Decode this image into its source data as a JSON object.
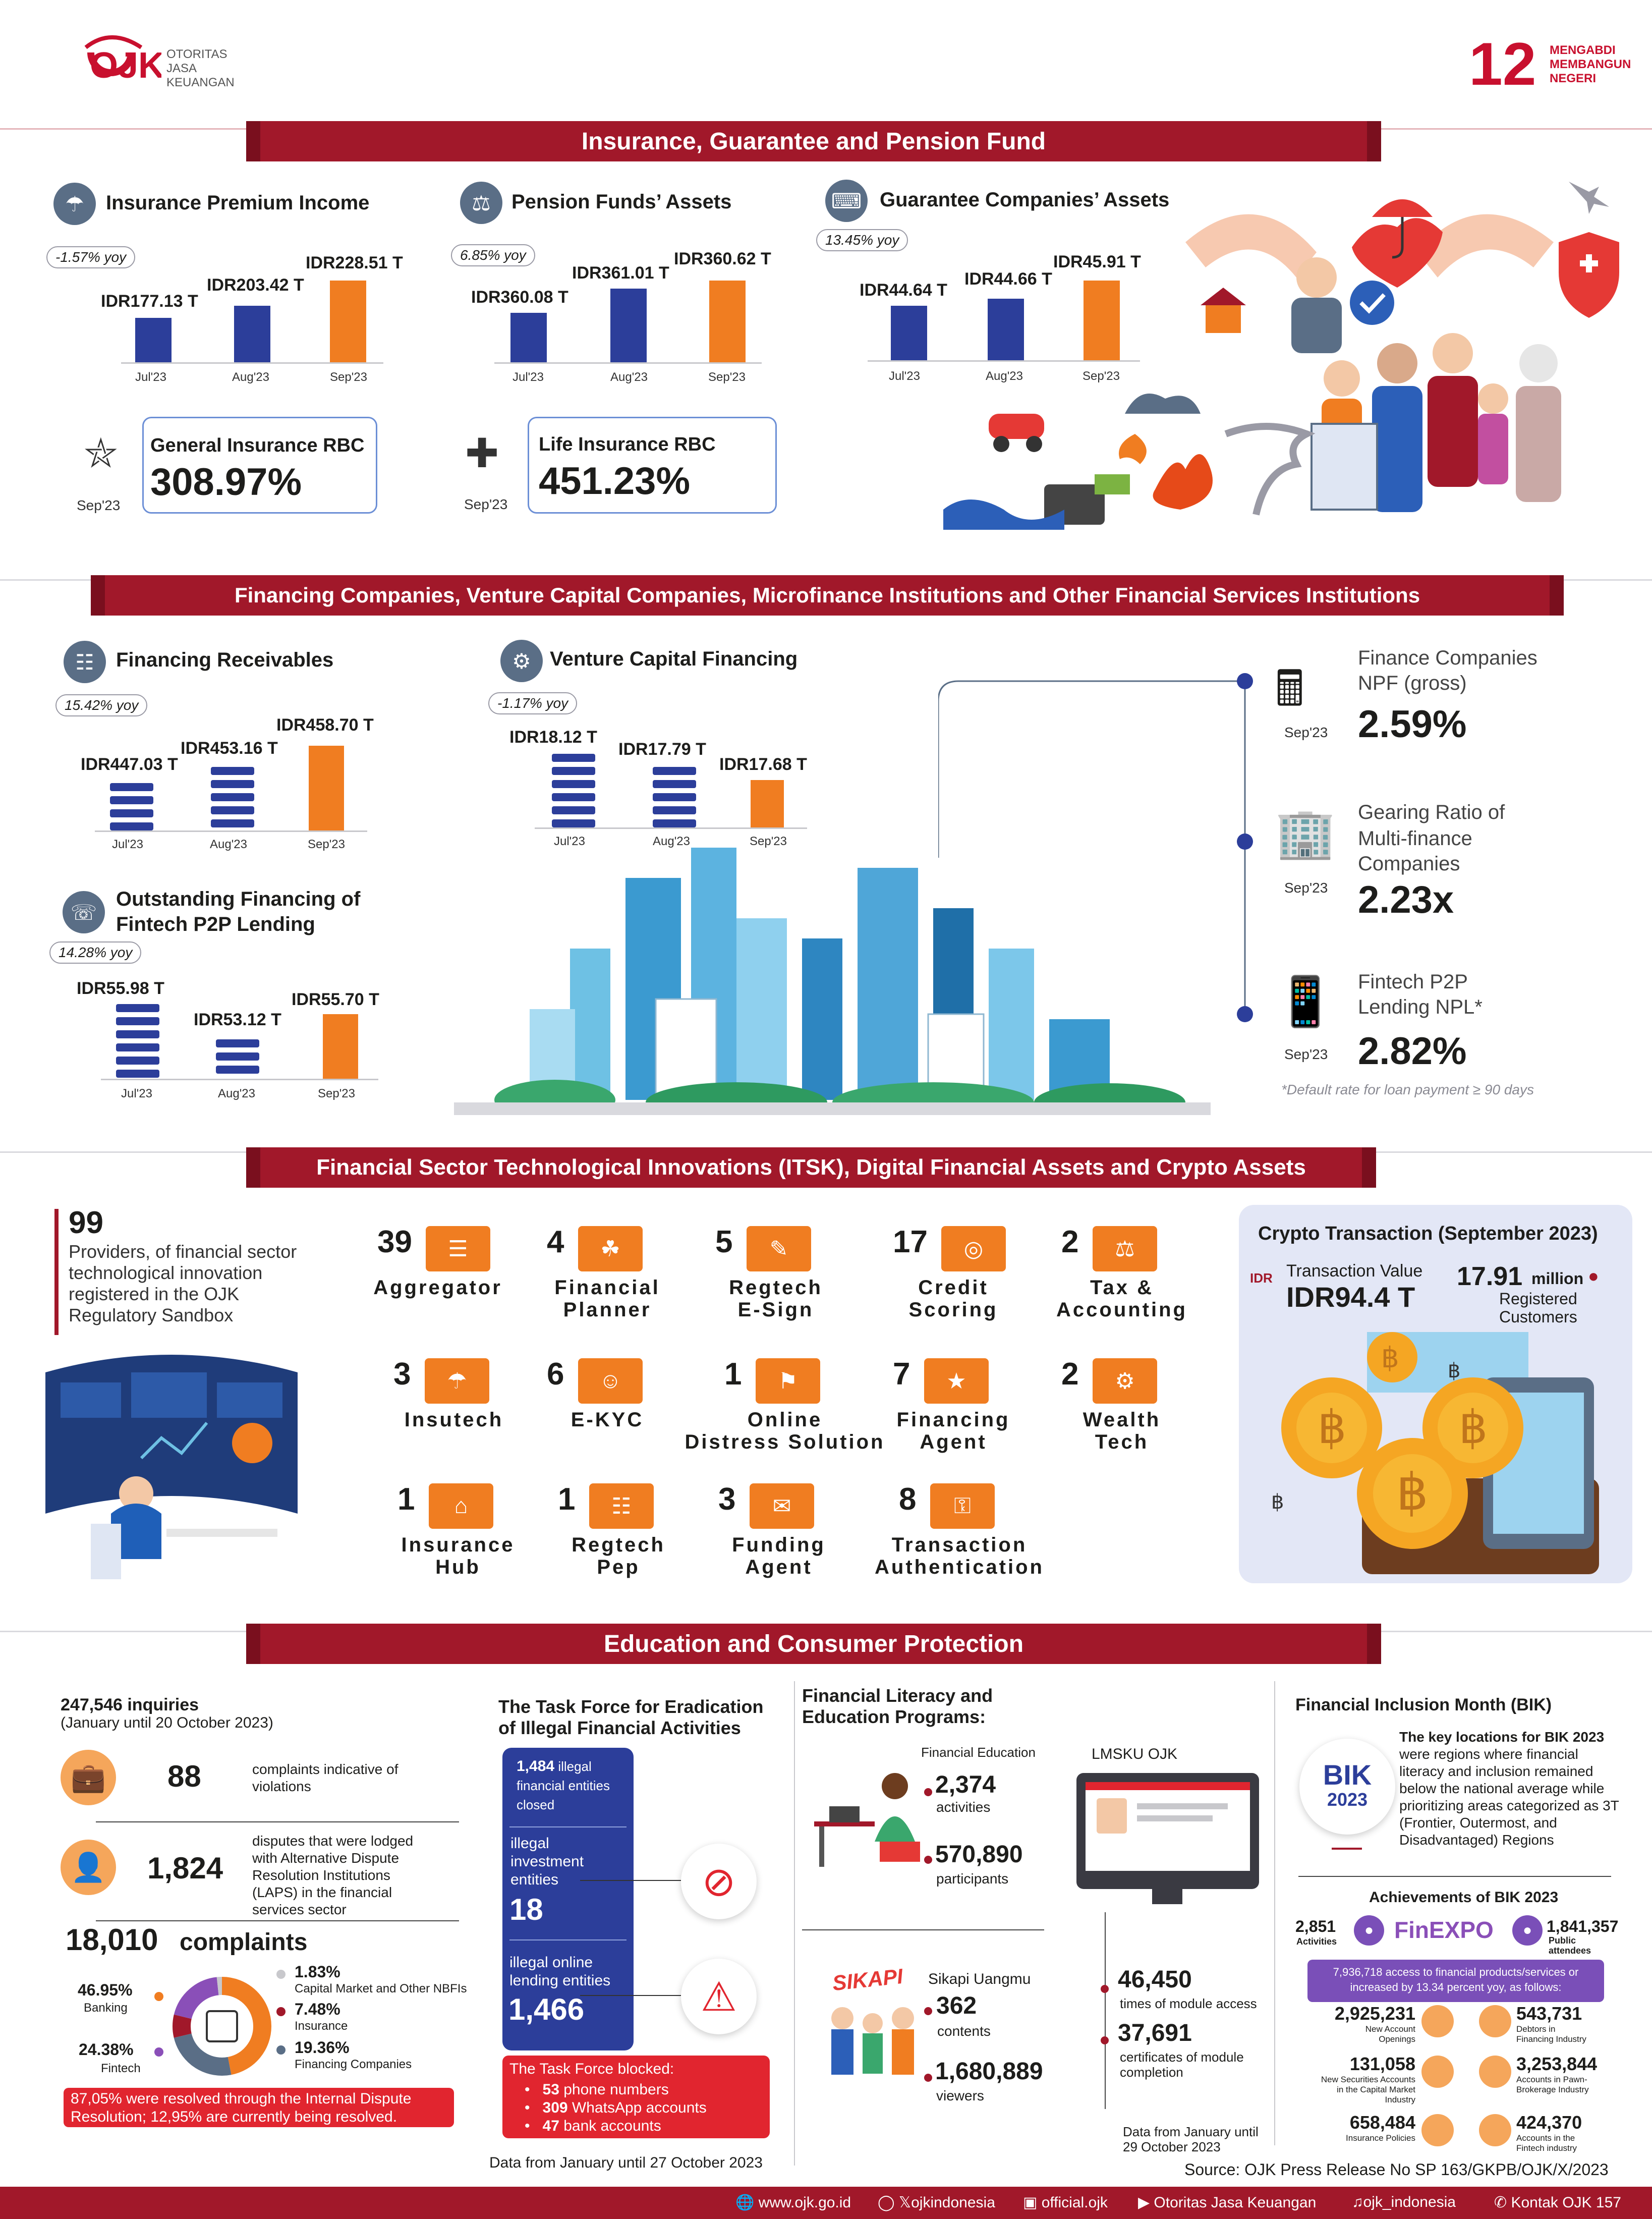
{
  "header": {
    "ojk_logo": "OJK",
    "ojk_name_1": "OTORITAS",
    "ojk_name_2": "JASA",
    "ojk_name_3": "KEUANGAN",
    "anniv_num": "12",
    "anniv_1": "MENGABDI",
    "anniv_2": "MEMBANGUN",
    "anniv_3": "NEGERI"
  },
  "s1": {
    "banner": "Insurance, Guarantee and Pension Fund",
    "premium": {
      "title": "Insurance Premium Income",
      "yoy": "-1.57% yoy",
      "values": [
        "IDR177.13 T",
        "IDR203.42 T",
        "IDR228.51 T"
      ],
      "months": [
        "Jul'23",
        "Aug'23",
        "Sep'23"
      ]
    },
    "pension": {
      "title": "Pension Funds’ Assets",
      "yoy": "6.85% yoy",
      "values": [
        "IDR360.08 T",
        "IDR361.01 T",
        "IDR360.62 T"
      ],
      "months": [
        "Jul'23",
        "Aug'23",
        "Sep'23"
      ]
    },
    "guarantee": {
      "title": "Guarantee Companies’ Assets",
      "yoy": "13.45% yoy",
      "values": [
        "IDR44.64 T",
        "IDR44.66 T",
        "IDR45.91 T"
      ],
      "months": [
        "Jul'23",
        "Aug'23",
        "Sep'23"
      ]
    },
    "general_rbc": {
      "label": "General Insurance RBC",
      "value": "308.97%",
      "month": "Sep'23"
    },
    "life_rbc": {
      "label": "Life Insurance RBC",
      "value": "451.23%",
      "month": "Sep'23"
    }
  },
  "s2": {
    "banner": "Financing Companies, Venture Capital Companies, Microfinance Institutions and Other Financial Services Institutions",
    "receivables": {
      "title": "Financing Receivables",
      "yoy": "15.42% yoy",
      "values": [
        "IDR447.03 T",
        "IDR453.16 T",
        "IDR458.70 T"
      ],
      "months": [
        "Jul'23",
        "Aug'23",
        "Sep'23"
      ]
    },
    "venture": {
      "title": "Venture Capital Financing",
      "yoy": "-1.17% yoy",
      "values": [
        "IDR18.12 T",
        "IDR17.79 T",
        "IDR17.68 T"
      ],
      "months": [
        "Jul'23",
        "Aug'23",
        "Sep'23"
      ]
    },
    "fintech": {
      "title_1": "Outstanding Financing of",
      "title_2": "Fintech P2P Lending",
      "yoy": "14.28% yoy",
      "values": [
        "IDR55.98 T",
        "IDR53.12 T",
        "IDR55.70 T"
      ],
      "months": [
        "Jul'23",
        "Aug'23",
        "Sep'23"
      ]
    },
    "npf": {
      "label_1": "Finance Companies",
      "label_2": "NPF (gross)",
      "value": "2.59%",
      "month": "Sep'23"
    },
    "gearing": {
      "label_1": "Gearing Ratio of",
      "label_2": "Multi-finance",
      "label_3": "Companies",
      "value": "2.23x",
      "month": "Sep'23"
    },
    "npl": {
      "label_1": "Fintech P2P",
      "label_2": "Lending NPL*",
      "value": "2.82%",
      "month": "Sep'23"
    },
    "note": "*Default rate for loan payment ≥ 90 days"
  },
  "s3": {
    "banner": "Financial Sector Technological Innovations (ITSK), Digital Financial Assets and Crypto Assets",
    "providers_num": "99",
    "providers_text_1": "Providers, of financial sector",
    "providers_text_2": "technological innovation",
    "providers_text_3": "registered in the OJK",
    "providers_text_4": "Regulatory Sandbox",
    "items": [
      {
        "num": "39",
        "l1": "Aggregator",
        "l2": ""
      },
      {
        "num": "4",
        "l1": "Financial",
        "l2": "Planner"
      },
      {
        "num": "5",
        "l1": "Regtech",
        "l2": "E-Sign"
      },
      {
        "num": "17",
        "l1": "Credit",
        "l2": "Scoring"
      },
      {
        "num": "2",
        "l1": "Tax &",
        "l2": "Accounting"
      },
      {
        "num": "3",
        "l1": "Insutech",
        "l2": ""
      },
      {
        "num": "6",
        "l1": "E-KYC",
        "l2": ""
      },
      {
        "num": "1",
        "l1": "Online",
        "l2": "Distress Solution"
      },
      {
        "num": "7",
        "l1": "Financing",
        "l2": "Agent"
      },
      {
        "num": "2",
        "l1": "Wealth",
        "l2": "Tech"
      },
      {
        "num": "1",
        "l1": "Insurance",
        "l2": "Hub"
      },
      {
        "num": "1",
        "l1": "Regtech",
        "l2": "Pep"
      },
      {
        "num": "3",
        "l1": "Funding",
        "l2": "Agent"
      },
      {
        "num": "8",
        "l1": "Transaction",
        "l2": "Authentication"
      }
    ],
    "crypto": {
      "title": "Crypto Transaction (September 2023)",
      "idr": "IDR",
      "tv_label": "Transaction Value",
      "tv_value": "IDR94.4 T",
      "cust_value": "17.91",
      "cust_unit": "million",
      "cust_l1": "Registered",
      "cust_l2": "Customers"
    }
  },
  "s4": {
    "banner": "Education and Consumer Protection",
    "inquiries": "247,546 inquiries",
    "inquiries_period": "(January until 20 October 2023)",
    "c88": "88",
    "c88_text_1": "complaints indicative of",
    "c88_text_2": "violations",
    "c1824": "1,824",
    "c1824_t1": "disputes that were lodged",
    "c1824_t2": "with Alternative Dispute",
    "c1824_t3": "Resolution Institutions",
    "c1824_t4": "(LAPS) in the financial",
    "c1824_t5": "services sector",
    "complaints_num": "18,010",
    "complaints_label": "complaints",
    "donut": {
      "banking_pct": "46.95%",
      "banking": "Banking",
      "fintech_pct": "24.38%",
      "fintech": "Fintech",
      "capital_pct": "1.83%",
      "capital": "Capital Market and Other NBFIs",
      "insurance_pct": "7.48%",
      "insurance": "Insurance",
      "financing_pct": "19.36%",
      "financing": "Financing Companies"
    },
    "resolved_1": "87,05% were resolved through the Internal Dispute",
    "resolved_2": "Resolution; 12,95% are currently being resolved.",
    "taskforce": {
      "title_1": "The Task Force for Eradication",
      "title_2": "of Illegal Financial Activities",
      "closed_num": "1,484",
      "closed_1": "illegal",
      "closed_2": "financial entities",
      "closed_3": "closed",
      "inv_l1": "illegal",
      "inv_l2": "investment",
      "inv_l3": "entities",
      "inv_num": "18",
      "online_l1": "illegal online",
      "online_l2": "lending entities",
      "online_num": "1,466",
      "blocked_title": "The Task Force blocked:",
      "b1_num": "53",
      "b1": "phone numbers",
      "b2_num": "309",
      "b2": "WhatsApp accounts",
      "b3_num": "47",
      "b3": "bank accounts",
      "period": "Data from January until 27 October 2023"
    },
    "literacy": {
      "title_1": "Financial Literacy and",
      "title_2": "Education Programs:",
      "fe_title": "Financial Education",
      "fe_act": "2,374",
      "fe_act_l": "activities",
      "fe_part": "570,890",
      "fe_part_l": "participants",
      "sik_title": "Sikapi Uangmu",
      "sik_logo": "SIKAPI",
      "sik_cont": "362",
      "sik_cont_l": "contents",
      "sik_view": "1,680,889",
      "sik_view_l": "viewers",
      "lmsku": "LMSKU OJK",
      "mod_access": "46,450",
      "mod_access_l": "times of module access",
      "cert": "37,691",
      "cert_l1": "certificates of module",
      "cert_l2": "completion",
      "period_1": "Data from January until",
      "period_2": "29 October 2023"
    },
    "bik": {
      "title": "Financial Inclusion Month (BIK)",
      "badge_1": "BIK",
      "badge_2": "2023",
      "text_1": "The key locations for BIK 2023",
      "text_2": "were regions where financial",
      "text_3": "literacy and inclusion remained",
      "text_4": "below the national average while",
      "text_5": "prioritizing areas categorized as 3T",
      "text_6": "(Frontier, Outermost, and",
      "text_7": "Disadvantaged) Regions",
      "ach_title": "Achievements of BIK 2023",
      "activities": "2,851",
      "activities_l": "Activities",
      "finexpo": "FinEXPO",
      "public": "1,841,357",
      "public_l1": "Public",
      "public_l2": "attendees",
      "access_1": "7,936,718 access to financial products/services or",
      "access_2": "increased by 13.34 percent yoy, as follows:",
      "stats": [
        {
          "v": "2,925,231",
          "l1": "New Account",
          "l2": "Openings"
        },
        {
          "v": "543,731",
          "l1": "Debtors in",
          "l2": "Financing Industry"
        },
        {
          "v": "131,058",
          "l1": "New Securities Accounts",
          "l2": "in the Capital Market Industry"
        },
        {
          "v": "3,253,844",
          "l1": "Accounts in Pawn-",
          "l2": "Brokerage Industry"
        },
        {
          "v": "658,484",
          "l1": "Insurance Policies",
          "l2": ""
        },
        {
          "v": "424,370",
          "l1": "Accounts in the",
          "l2": "Fintech industry"
        }
      ]
    },
    "source": "Source: OJK Press Release No SP 163/GKPB/OJK/X/2023"
  },
  "footer": {
    "web": "www.ojk.go.id",
    "x": "ojkindonesia",
    "fb": "official.ojk",
    "yt": "Otoritas Jasa Keuangan",
    "tt": "ojk_indonesia",
    "phone": "Kontak OJK 157"
  },
  "colors": {
    "accent": "#a1182a",
    "navy": "#2c3e9a",
    "orange": "#f07d21"
  }
}
